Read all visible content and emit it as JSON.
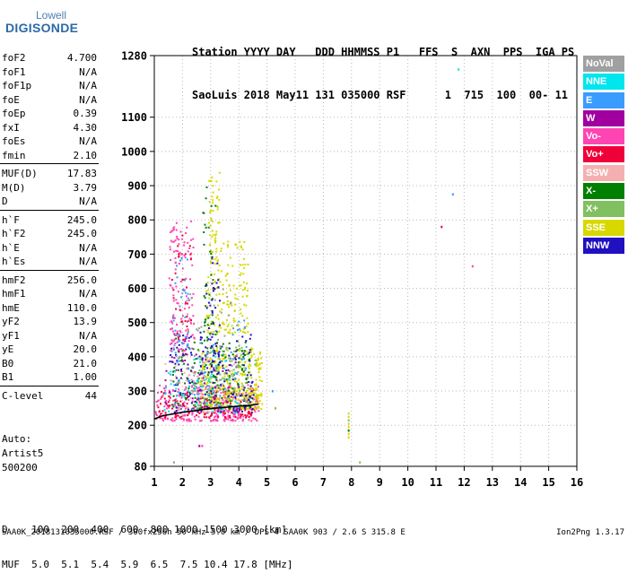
{
  "logo": {
    "top": "Lowell",
    "bottom": "DIGISONDE"
  },
  "header": {
    "line1": "Station YYYY DAY   DDD HHMMSS P1   FFS  S  AXN  PPS  IGA PS",
    "line2": "SaoLuis 2018 May11 131 035000 RSF      1  715  100  00- 11"
  },
  "params": {
    "group1": [
      {
        "name": "foF2",
        "value": "4.700"
      },
      {
        "name": "foF1",
        "value": "N/A"
      },
      {
        "name": "foF1p",
        "value": "N/A"
      },
      {
        "name": "foE",
        "value": "N/A"
      },
      {
        "name": "foEp",
        "value": "0.39"
      },
      {
        "name": "fxI",
        "value": "4.30"
      },
      {
        "name": "foEs",
        "value": "N/A"
      },
      {
        "name": "fmin",
        "value": "2.10"
      }
    ],
    "group2": [
      {
        "name": "MUF(D)",
        "value": "17.83"
      },
      {
        "name": "M(D)",
        "value": "3.79"
      },
      {
        "name": "D",
        "value": "N/A"
      }
    ],
    "group3": [
      {
        "name": "h`F",
        "value": "245.0"
      },
      {
        "name": "h`F2",
        "value": "245.0"
      },
      {
        "name": "h`E",
        "value": "N/A"
      },
      {
        "name": "h`Es",
        "value": "N/A"
      }
    ],
    "group4": [
      {
        "name": "hmF2",
        "value": "256.0"
      },
      {
        "name": "hmF1",
        "value": "N/A"
      },
      {
        "name": "hmE",
        "value": "110.0"
      },
      {
        "name": "yF2",
        "value": "13.9"
      },
      {
        "name": "yF1",
        "value": "N/A"
      },
      {
        "name": "yE",
        "value": "20.0"
      },
      {
        "name": "B0",
        "value": "21.0"
      },
      {
        "name": "B1",
        "value": "1.00"
      }
    ],
    "group5": [
      {
        "name": "C-level",
        "value": "44"
      }
    ]
  },
  "auto": {
    "line1": "Auto:",
    "line2": "Artist5",
    "line3": "500200"
  },
  "legend": [
    {
      "label": "NoVal",
      "color": "#a0a0a0"
    },
    {
      "label": "NNE",
      "color": "#00e5ee"
    },
    {
      "label": "E",
      "color": "#3a9cff"
    },
    {
      "label": "W",
      "color": "#a000a0"
    },
    {
      "label": "Vo-",
      "color": "#ff44b4"
    },
    {
      "label": "Vo+",
      "color": "#f00038"
    },
    {
      "label": "SSW",
      "color": "#f4b0b0"
    },
    {
      "label": "X-",
      "color": "#008000"
    },
    {
      "label": "X+",
      "color": "#80c060"
    },
    {
      "label": "SSE",
      "color": "#d8d800"
    },
    {
      "label": "NNW",
      "color": "#2010c0"
    }
  ],
  "conversion": {
    "line1": "D    100  200  400  600  800 1000 1500 3000 [km]",
    "line2": "MUF  5.0  5.1  5.4  5.9  6.5  7.5 10.4 17.8 [MHz]"
  },
  "footer": {
    "left": "SAA0K_2018131035000.RSF / 300fx256h 50 kHz 5.0 km / DPS-4 SAA0K 903 / 2.6 S 315.8 E",
    "right": "Ion2Png 1.3.17"
  },
  "chart_data": {
    "type": "scatter",
    "xlim": [
      1,
      16
    ],
    "ylim": [
      80,
      1280
    ],
    "x_ticks": [
      1,
      2,
      3,
      4,
      5,
      6,
      7,
      8,
      9,
      10,
      11,
      12,
      13,
      14,
      15,
      16
    ],
    "y_ticks": [
      80,
      200,
      300,
      400,
      500,
      600,
      700,
      800,
      900,
      1000,
      1100,
      1280
    ],
    "grid": true,
    "trace": {
      "x": [
        1.0,
        1.3,
        1.6,
        2.0,
        2.4,
        2.8,
        3.2,
        3.6,
        4.0,
        4.4,
        4.7
      ],
      "y": [
        218,
        228,
        232,
        238,
        242,
        247,
        250,
        253,
        256,
        258,
        262
      ]
    },
    "clusters": [
      {
        "color": "#ff44b4",
        "x": [
          1.0,
          4.7
        ],
        "y": [
          215,
          320
        ],
        "count": 320
      },
      {
        "color": "#f00038",
        "x": [
          1.1,
          4.6
        ],
        "y": [
          225,
          310
        ],
        "count": 140
      },
      {
        "color": "#d8d800",
        "x": [
          2.6,
          4.8
        ],
        "y": [
          250,
          430
        ],
        "count": 380
      },
      {
        "color": "#008000",
        "x": [
          1.6,
          4.4
        ],
        "y": [
          250,
          460
        ],
        "count": 160
      },
      {
        "color": "#80c060",
        "x": [
          2.4,
          4.6
        ],
        "y": [
          260,
          430
        ],
        "count": 90
      },
      {
        "color": "#2010c0",
        "x": [
          1.5,
          4.5
        ],
        "y": [
          240,
          470
        ],
        "count": 150
      },
      {
        "color": "#3a9cff",
        "x": [
          1.5,
          4.3
        ],
        "y": [
          250,
          520
        ],
        "count": 80
      },
      {
        "color": "#a000a0",
        "x": [
          1.3,
          4.0
        ],
        "y": [
          240,
          420
        ],
        "count": 70
      },
      {
        "color": "#00e5ee",
        "x": [
          1.3,
          4.0
        ],
        "y": [
          240,
          420
        ],
        "count": 60
      },
      {
        "color": "#f4b0b0",
        "x": [
          1.3,
          4.0
        ],
        "y": [
          240,
          400
        ],
        "count": 60
      },
      {
        "color": "#ff44b4",
        "x": [
          1.5,
          2.4
        ],
        "y": [
          420,
          800
        ],
        "count": 130
      },
      {
        "color": "#f00038",
        "x": [
          1.6,
          2.3
        ],
        "y": [
          450,
          760
        ],
        "count": 35
      },
      {
        "color": "#3a9cff",
        "x": [
          1.6,
          2.2
        ],
        "y": [
          420,
          700
        ],
        "count": 30
      },
      {
        "color": "#d8d800",
        "x": [
          2.8,
          4.3
        ],
        "y": [
          470,
          740
        ],
        "count": 160
      },
      {
        "color": "#d8d800",
        "x": [
          2.9,
          3.3
        ],
        "y": [
          740,
          960
        ],
        "count": 40
      },
      {
        "color": "#008000",
        "x": [
          2.7,
          3.2
        ],
        "y": [
          450,
          900
        ],
        "count": 40
      },
      {
        "color": "#2010c0",
        "x": [
          2.6,
          3.3
        ],
        "y": [
          350,
          700
        ],
        "count": 50
      },
      {
        "color": "#a0a0a0",
        "x": [
          1.8,
          4.0
        ],
        "y": [
          300,
          600
        ],
        "count": 60
      }
    ],
    "points": [
      {
        "x": 11.8,
        "y": 1240,
        "color": "#00e5ee"
      },
      {
        "x": 11.6,
        "y": 875,
        "color": "#3a9cff"
      },
      {
        "x": 11.2,
        "y": 780,
        "color": "#f00038"
      },
      {
        "x": 12.3,
        "y": 665,
        "color": "#ff44b4"
      },
      {
        "x": 5.2,
        "y": 300,
        "color": "#3a9cff"
      },
      {
        "x": 5.3,
        "y": 250,
        "color": "#80c060"
      },
      {
        "x": 8.3,
        "y": 92,
        "color": "#80c060"
      },
      {
        "x": 7.9,
        "y": 235,
        "color": "#d8d800"
      },
      {
        "x": 7.9,
        "y": 225,
        "color": "#d8d800"
      },
      {
        "x": 7.9,
        "y": 215,
        "color": "#80c060"
      },
      {
        "x": 7.9,
        "y": 205,
        "color": "#d8d800"
      },
      {
        "x": 7.9,
        "y": 195,
        "color": "#d8d800"
      },
      {
        "x": 7.9,
        "y": 185,
        "color": "#008000"
      },
      {
        "x": 7.9,
        "y": 175,
        "color": "#d8d800"
      },
      {
        "x": 7.9,
        "y": 165,
        "color": "#d8d800"
      },
      {
        "x": 2.6,
        "y": 140,
        "color": "#a000a0"
      },
      {
        "x": 2.7,
        "y": 140,
        "color": "#ff44b4"
      },
      {
        "x": 1.7,
        "y": 92,
        "color": "#a0a0a0"
      }
    ]
  }
}
